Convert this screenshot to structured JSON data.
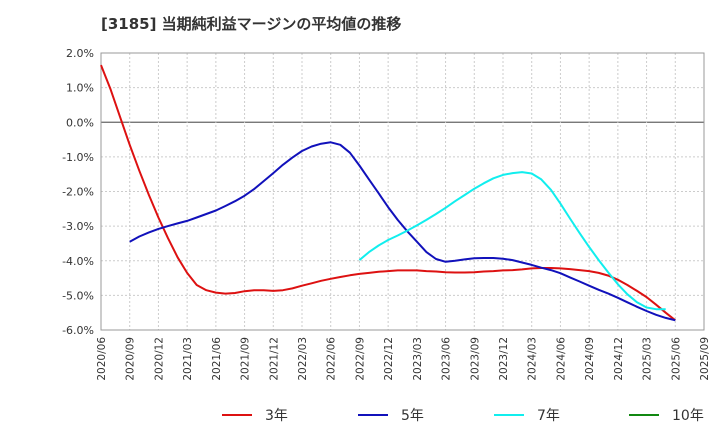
{
  "chart_data": {
    "type": "line",
    "title": "[3185]  当期純利益マージンの平均値の推移",
    "xlabel": "",
    "ylabel": "",
    "ylim": [
      -6.0,
      2.0
    ],
    "y_ticks": [
      "2.0%",
      "1.0%",
      "0.0%",
      "-1.0%",
      "-2.0%",
      "-3.0%",
      "-4.0%",
      "-5.0%",
      "-6.0%"
    ],
    "x_ticks": [
      "2020/06",
      "2020/09",
      "2020/12",
      "2021/03",
      "2021/06",
      "2021/09",
      "2021/12",
      "2022/03",
      "2022/06",
      "2022/09",
      "2022/12",
      "2023/03",
      "2023/06",
      "2023/09",
      "2023/12",
      "2024/03",
      "2024/06",
      "2024/09",
      "2024/12",
      "2025/03",
      "2025/06",
      "2025/09"
    ],
    "grid": true,
    "legend_position": "bottom",
    "x_unit": "month",
    "series": [
      {
        "name": "3年",
        "color": "#dd1111",
        "points": [
          [
            "2020/06",
            1.65
          ],
          [
            "2020/07",
            0.95
          ],
          [
            "2020/08",
            0.15
          ],
          [
            "2020/09",
            -0.65
          ],
          [
            "2020/10",
            -1.4
          ],
          [
            "2020/11",
            -2.1
          ],
          [
            "2020/12",
            -2.75
          ],
          [
            "2021/01",
            -3.35
          ],
          [
            "2021/02",
            -3.9
          ],
          [
            "2021/03",
            -4.35
          ],
          [
            "2021/04",
            -4.7
          ],
          [
            "2021/05",
            -4.85
          ],
          [
            "2021/06",
            -4.92
          ],
          [
            "2021/07",
            -4.95
          ],
          [
            "2021/08",
            -4.93
          ],
          [
            "2021/09",
            -4.88
          ],
          [
            "2021/10",
            -4.85
          ],
          [
            "2021/11",
            -4.85
          ],
          [
            "2021/12",
            -4.87
          ],
          [
            "2022/01",
            -4.85
          ],
          [
            "2022/02",
            -4.8
          ],
          [
            "2022/03",
            -4.72
          ],
          [
            "2022/04",
            -4.65
          ],
          [
            "2022/05",
            -4.58
          ],
          [
            "2022/06",
            -4.52
          ],
          [
            "2022/07",
            -4.47
          ],
          [
            "2022/08",
            -4.42
          ],
          [
            "2022/09",
            -4.38
          ],
          [
            "2022/10",
            -4.35
          ],
          [
            "2022/11",
            -4.32
          ],
          [
            "2022/12",
            -4.3
          ],
          [
            "2023/01",
            -4.28
          ],
          [
            "2023/02",
            -4.28
          ],
          [
            "2023/03",
            -4.28
          ],
          [
            "2023/04",
            -4.3
          ],
          [
            "2023/05",
            -4.31
          ],
          [
            "2023/06",
            -4.33
          ],
          [
            "2023/07",
            -4.34
          ],
          [
            "2023/08",
            -4.34
          ],
          [
            "2023/09",
            -4.33
          ],
          [
            "2023/10",
            -4.31
          ],
          [
            "2023/11",
            -4.3
          ],
          [
            "2023/12",
            -4.28
          ],
          [
            "2024/01",
            -4.27
          ],
          [
            "2024/02",
            -4.25
          ],
          [
            "2024/03",
            -4.22
          ],
          [
            "2024/04",
            -4.21
          ],
          [
            "2024/05",
            -4.21
          ],
          [
            "2024/06",
            -4.22
          ],
          [
            "2024/07",
            -4.24
          ],
          [
            "2024/08",
            -4.27
          ],
          [
            "2024/09",
            -4.3
          ],
          [
            "2024/10",
            -4.35
          ],
          [
            "2024/11",
            -4.43
          ],
          [
            "2024/12",
            -4.55
          ],
          [
            "2025/01",
            -4.7
          ],
          [
            "2025/02",
            -4.87
          ],
          [
            "2025/03",
            -5.05
          ],
          [
            "2025/04",
            -5.27
          ],
          [
            "2025/05",
            -5.5
          ],
          [
            "2025/06",
            -5.72
          ]
        ]
      },
      {
        "name": "5年",
        "color": "#1111bb",
        "points": [
          [
            "2020/09",
            -3.45
          ],
          [
            "2020/10",
            -3.3
          ],
          [
            "2020/11",
            -3.18
          ],
          [
            "2020/12",
            -3.08
          ],
          [
            "2021/01",
            -3.0
          ],
          [
            "2021/02",
            -2.92
          ],
          [
            "2021/03",
            -2.85
          ],
          [
            "2021/04",
            -2.75
          ],
          [
            "2021/05",
            -2.65
          ],
          [
            "2021/06",
            -2.55
          ],
          [
            "2021/07",
            -2.42
          ],
          [
            "2021/08",
            -2.28
          ],
          [
            "2021/09",
            -2.12
          ],
          [
            "2021/10",
            -1.93
          ],
          [
            "2021/11",
            -1.7
          ],
          [
            "2021/12",
            -1.47
          ],
          [
            "2022/01",
            -1.23
          ],
          [
            "2022/02",
            -1.02
          ],
          [
            "2022/03",
            -0.83
          ],
          [
            "2022/04",
            -0.7
          ],
          [
            "2022/05",
            -0.62
          ],
          [
            "2022/06",
            -0.58
          ],
          [
            "2022/07",
            -0.65
          ],
          [
            "2022/08",
            -0.88
          ],
          [
            "2022/09",
            -1.25
          ],
          [
            "2022/10",
            -1.65
          ],
          [
            "2022/11",
            -2.05
          ],
          [
            "2022/12",
            -2.45
          ],
          [
            "2023/01",
            -2.82
          ],
          [
            "2023/02",
            -3.15
          ],
          [
            "2023/03",
            -3.45
          ],
          [
            "2023/04",
            -3.75
          ],
          [
            "2023/05",
            -3.95
          ],
          [
            "2023/06",
            -4.03
          ],
          [
            "2023/07",
            -4.0
          ],
          [
            "2023/08",
            -3.96
          ],
          [
            "2023/09",
            -3.93
          ],
          [
            "2023/10",
            -3.92
          ],
          [
            "2023/11",
            -3.92
          ],
          [
            "2023/12",
            -3.94
          ],
          [
            "2024/01",
            -3.98
          ],
          [
            "2024/02",
            -4.05
          ],
          [
            "2024/03",
            -4.12
          ],
          [
            "2024/04",
            -4.2
          ],
          [
            "2024/05",
            -4.27
          ],
          [
            "2024/06",
            -4.36
          ],
          [
            "2024/07",
            -4.48
          ],
          [
            "2024/08",
            -4.6
          ],
          [
            "2024/09",
            -4.72
          ],
          [
            "2024/10",
            -4.84
          ],
          [
            "2024/11",
            -4.95
          ],
          [
            "2024/12",
            -5.07
          ],
          [
            "2025/01",
            -5.2
          ],
          [
            "2025/02",
            -5.33
          ],
          [
            "2025/03",
            -5.45
          ],
          [
            "2025/04",
            -5.56
          ],
          [
            "2025/05",
            -5.65
          ],
          [
            "2025/06",
            -5.72
          ]
        ]
      },
      {
        "name": "7年",
        "color": "#11eeee",
        "points": [
          [
            "2022/09",
            -3.98
          ],
          [
            "2022/10",
            -3.75
          ],
          [
            "2022/11",
            -3.56
          ],
          [
            "2022/12",
            -3.4
          ],
          [
            "2023/01",
            -3.27
          ],
          [
            "2023/02",
            -3.13
          ],
          [
            "2023/03",
            -2.98
          ],
          [
            "2023/04",
            -2.82
          ],
          [
            "2023/05",
            -2.65
          ],
          [
            "2023/06",
            -2.47
          ],
          [
            "2023/07",
            -2.28
          ],
          [
            "2023/08",
            -2.1
          ],
          [
            "2023/09",
            -1.92
          ],
          [
            "2023/10",
            -1.76
          ],
          [
            "2023/11",
            -1.62
          ],
          [
            "2023/12",
            -1.52
          ],
          [
            "2024/01",
            -1.47
          ],
          [
            "2024/02",
            -1.44
          ],
          [
            "2024/03",
            -1.48
          ],
          [
            "2024/04",
            -1.65
          ],
          [
            "2024/05",
            -1.95
          ],
          [
            "2024/06",
            -2.35
          ],
          [
            "2024/07",
            -2.78
          ],
          [
            "2024/08",
            -3.2
          ],
          [
            "2024/09",
            -3.6
          ],
          [
            "2024/10",
            -3.98
          ],
          [
            "2024/11",
            -4.34
          ],
          [
            "2024/12",
            -4.68
          ],
          [
            "2025/01",
            -4.97
          ],
          [
            "2025/02",
            -5.2
          ],
          [
            "2025/03",
            -5.35
          ],
          [
            "2025/04",
            -5.4
          ],
          [
            "2025/05",
            -5.4
          ]
        ]
      },
      {
        "name": "10年",
        "color": "#118811",
        "points": []
      }
    ]
  }
}
